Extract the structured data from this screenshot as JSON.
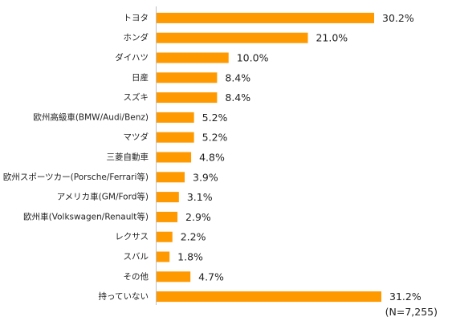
{
  "chart_data": {
    "type": "bar",
    "orientation": "horizontal",
    "categories": [
      "トヨタ",
      "ホンダ",
      "ダイハツ",
      "日産",
      "スズキ",
      "欧州高級車(BMW/Audi/Benz)",
      "マツダ",
      "三菱自動車",
      "欧州スポーツカー(Porsche/Ferrari等)",
      "アメリカ車(GM/Ford等)",
      "欧州車(Volkswagen/Renault等)",
      "レクサス",
      "スバル",
      "その他",
      "持っていない"
    ],
    "values": [
      30.2,
      21.0,
      10.0,
      8.4,
      8.4,
      5.2,
      5.2,
      4.8,
      3.9,
      3.1,
      2.9,
      2.2,
      1.8,
      4.7,
      31.2
    ],
    "value_labels": [
      "30.2%",
      "21.0%",
      "10.0%",
      "8.4%",
      "8.4%",
      "5.2%",
      "5.2%",
      "4.8%",
      "3.9%",
      "3.1%",
      "2.9%",
      "2.2%",
      "1.8%",
      "4.7%",
      "31.2%"
    ],
    "bar_color": "#ff9900",
    "note": "(N=7,255)",
    "grid": false,
    "legend": "none",
    "xlim": [
      0,
      31.2
    ]
  }
}
